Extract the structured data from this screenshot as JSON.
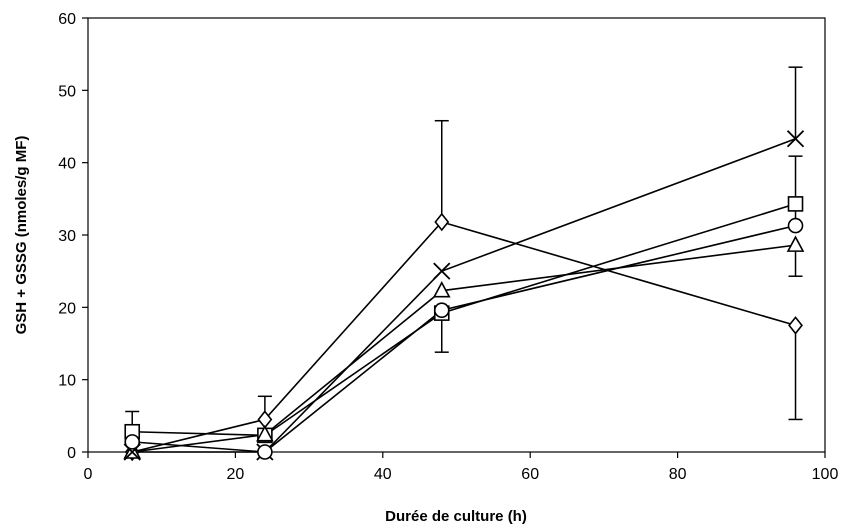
{
  "chart_data": {
    "type": "scatter",
    "title": "",
    "xlabel": "Durée de culture (h)",
    "ylabel": "GSH + GSSG (nmoles/g MF)",
    "xlim": [
      0,
      100
    ],
    "ylim": [
      0,
      60
    ],
    "x_ticks": [
      "0",
      "20",
      "40",
      "60",
      "80",
      "100"
    ],
    "y_ticks": [
      "0",
      "10",
      "20",
      "30",
      "40",
      "50",
      "60"
    ],
    "grid": false,
    "legend": "none",
    "line_color": "#000000",
    "series": [
      {
        "marker": "diamond",
        "x": [
          6,
          24,
          48,
          96
        ],
        "y": [
          0.0,
          4.5,
          31.8,
          17.5
        ],
        "error_upper": [
          0.0,
          3.2,
          14.0,
          0.0
        ],
        "error_lower": [
          0.0,
          0.0,
          0.0,
          13.0
        ]
      },
      {
        "marker": "square",
        "x": [
          6,
          24,
          48,
          96
        ],
        "y": [
          2.8,
          2.3,
          19.2,
          34.3
        ],
        "error_upper": [
          2.8,
          0.0,
          0.0,
          0.0
        ],
        "error_lower": [
          0.0,
          0.0,
          5.4,
          0.0
        ]
      },
      {
        "marker": "triangle",
        "x": [
          6,
          24,
          48,
          96
        ],
        "y": [
          0.0,
          2.4,
          22.3,
          28.6
        ],
        "error_upper": [
          0.0,
          0.0,
          0.0,
          0.0
        ],
        "error_lower": [
          0.0,
          0.0,
          0.0,
          4.3
        ]
      },
      {
        "marker": "x",
        "x": [
          6,
          24,
          48,
          96
        ],
        "y": [
          0.0,
          0.0,
          25.0,
          43.3
        ],
        "error_upper": [
          0.0,
          0.0,
          0.0,
          9.9
        ],
        "error_lower": [
          0.0,
          0.0,
          0.0,
          0.0
        ]
      },
      {
        "marker": "circle",
        "x": [
          6,
          24,
          48,
          96
        ],
        "y": [
          1.4,
          0.0,
          19.6,
          31.3
        ],
        "error_upper": [
          0.0,
          0.0,
          0.0,
          9.6
        ],
        "error_lower": [
          0.0,
          0.0,
          0.0,
          0.0
        ]
      }
    ]
  }
}
